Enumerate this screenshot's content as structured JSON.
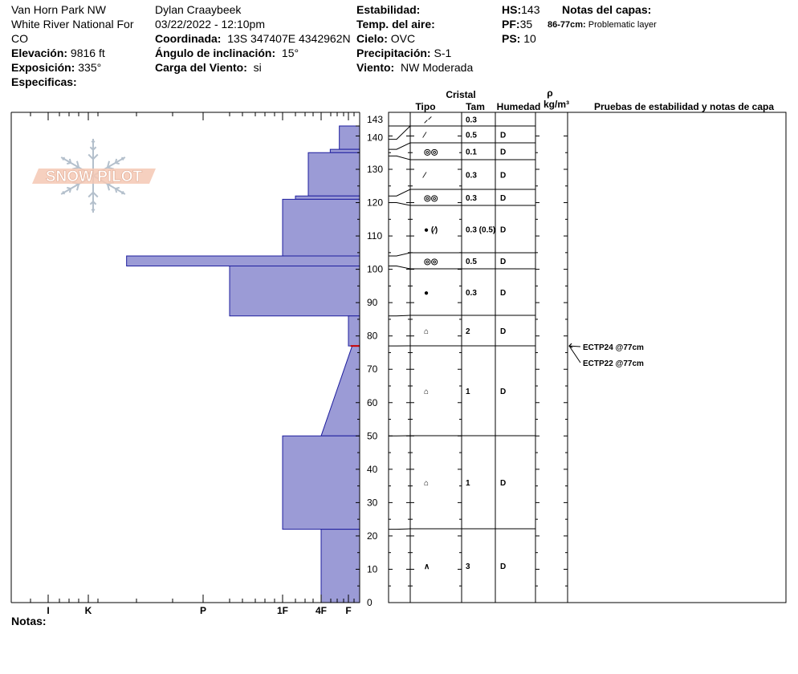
{
  "header": {
    "location_line1": "Van Horn Park NW",
    "location_line2": "White River National For",
    "state": "CO",
    "elevation_label": "Elevación:",
    "elevation_value": "9816 ft",
    "aspect_label": "Exposición:",
    "aspect_value": "335°",
    "specifics_label": "Especificas:",
    "observer": "Dylan Craaybeek",
    "datetime": "03/22/2022 - 12:10pm",
    "coord_label": "Coordinada:",
    "coord_value": "13S 347407E 4342962N",
    "slope_label": "Ángulo de inclinación:",
    "slope_value": "15°",
    "wind_load_label": "Carga del Viento:",
    "wind_load_value": "si",
    "stability_label": "Estabilidad:",
    "air_temp_label": "Temp. del aire:",
    "sky_label": "Cielo:",
    "sky_value": "OVC",
    "precip_label": "Precipitación:",
    "precip_value": "S-1",
    "wind_label": "Viento:",
    "wind_value": "NW Moderada",
    "hs_label": "HS:",
    "hs_value": "143",
    "pf_label": "PF:",
    "pf_value": "35",
    "ps_label": "PS:",
    "ps_value": "10",
    "layer_notes_label": "Notas del capas:",
    "layer_note_range": "86-77cm:",
    "layer_note_text": "Problematic layer",
    "notes_label": "Notas:"
  },
  "watermark": {
    "text": "SNOW PILOT"
  },
  "columns": {
    "crystal": "Cristal",
    "type": "Tipo",
    "size": "Tam",
    "moisture": "Humedad",
    "rho": "ρ",
    "density_unit": "kg/m³",
    "tests": "Pruebas de estabilidad y notas de capa"
  },
  "chart_data": {
    "type": "bar",
    "ylim": [
      0,
      143
    ],
    "y_ticks": [
      "0",
      "10",
      "20",
      "30",
      "40",
      "50",
      "60",
      "70",
      "80",
      "90",
      "100",
      "110",
      "120",
      "130",
      "140",
      "143"
    ],
    "hardness_scale": [
      "I",
      "K",
      "P",
      "1F",
      "4F",
      "F"
    ],
    "hardness_profile": [
      {
        "top": 143,
        "bottom": 136,
        "hardness": "F-"
      },
      {
        "top": 136,
        "bottom": 135,
        "hardness": "4F+"
      },
      {
        "top": 135,
        "bottom": 122,
        "hardness": "4F-"
      },
      {
        "top": 122,
        "bottom": 121,
        "hardness": "1F+"
      },
      {
        "top": 121,
        "bottom": 104,
        "hardness": "1F"
      },
      {
        "top": 104,
        "bottom": 101,
        "hardness": "K+"
      },
      {
        "top": 101,
        "bottom": 86,
        "hardness": "P+"
      },
      {
        "top": 86,
        "bottom": 77,
        "hardness": "F"
      },
      {
        "top": 77,
        "bottom": 50,
        "hardness_top": "F+",
        "hardness_bottom": "4F"
      },
      {
        "top": 50,
        "bottom": 22,
        "hardness": "1F"
      },
      {
        "top": 22,
        "bottom": 0,
        "hardness": "4F"
      }
    ],
    "layers": [
      {
        "top": 143,
        "bottom": 139,
        "symbol": "⸝⸍",
        "size": "0.3",
        "moisture": ""
      },
      {
        "top": 139,
        "bottom": 136,
        "symbol": "⁄",
        "size": "0.5",
        "moisture": "D"
      },
      {
        "top": 136,
        "bottom": 134,
        "symbol": "◎◎",
        "size": "0.1",
        "moisture": "D"
      },
      {
        "top": 134,
        "bottom": 122,
        "symbol": "⁄",
        "size": "0.3",
        "moisture": "D"
      },
      {
        "top": 122,
        "bottom": 120,
        "symbol": "◎◎",
        "size": "0.3",
        "moisture": "D"
      },
      {
        "top": 120,
        "bottom": 104,
        "symbol": "● (⁄)",
        "size": "0.3 (0.5)",
        "moisture": "D"
      },
      {
        "top": 104,
        "bottom": 101,
        "symbol": "◎◎",
        "size": "0.5",
        "moisture": "D"
      },
      {
        "top": 101,
        "bottom": 86,
        "symbol": "●",
        "size": "0.3",
        "moisture": "D"
      },
      {
        "top": 86,
        "bottom": 77,
        "symbol": "⌂",
        "size": "2",
        "moisture": "D"
      },
      {
        "top": 77,
        "bottom": 50,
        "symbol": "⌂",
        "size": "1",
        "moisture": "D"
      },
      {
        "top": 50,
        "bottom": 22,
        "symbol": "⌂",
        "size": "1",
        "moisture": "D"
      },
      {
        "top": 22,
        "bottom": 0,
        "symbol": "∧",
        "size": "3",
        "moisture": "D"
      }
    ],
    "stability_tests": [
      {
        "label": "ECTP24 @77cm",
        "depth": 77
      },
      {
        "label": "ECTP22 @77cm",
        "depth": 77
      }
    ]
  },
  "colors": {
    "fill": "#9b9bd6",
    "stroke": "#1e1e9e",
    "marker": "#cc0000",
    "watermark_fill": "#f4c8b4",
    "watermark_stroke": "#b4c0cc"
  }
}
